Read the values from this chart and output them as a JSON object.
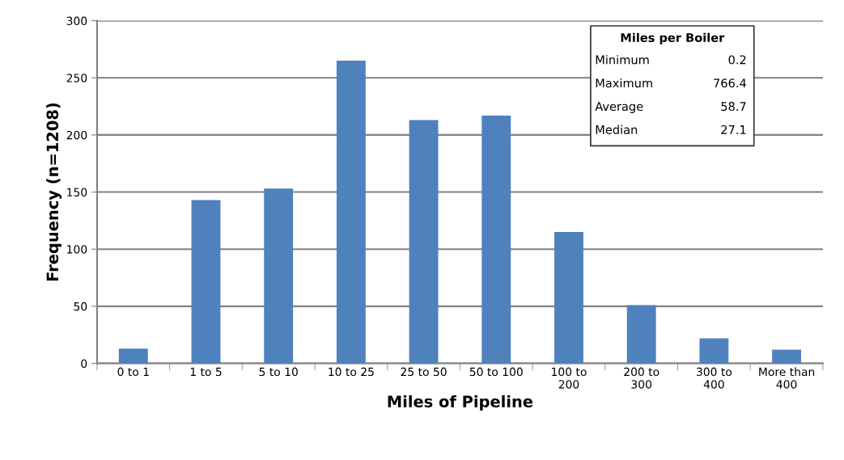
{
  "chart_data": {
    "type": "bar",
    "xlabel": "Miles of Pipeline",
    "ylabel": "Frequency (n=1208)",
    "categories": [
      "0 to 1",
      "1 to 5",
      "5 to 10",
      "10 to 25",
      "25 to 50",
      "50 to 100",
      "100 to\n200",
      "200 to\n300",
      "300 to\n400",
      "More than\n400"
    ],
    "values": [
      13,
      143,
      153,
      265,
      213,
      217,
      115,
      51,
      22,
      12
    ],
    "color": "#4f81bd",
    "ylim": [
      0,
      300
    ],
    "yticks": [
      0,
      50,
      100,
      150,
      200,
      250,
      300
    ],
    "grid": "y",
    "annotations": [
      "Miles per Boiler",
      "Minimum",
      "0.2",
      "Maximum",
      "766.4",
      "Average",
      "58.7",
      "Median",
      "27.1"
    ]
  }
}
